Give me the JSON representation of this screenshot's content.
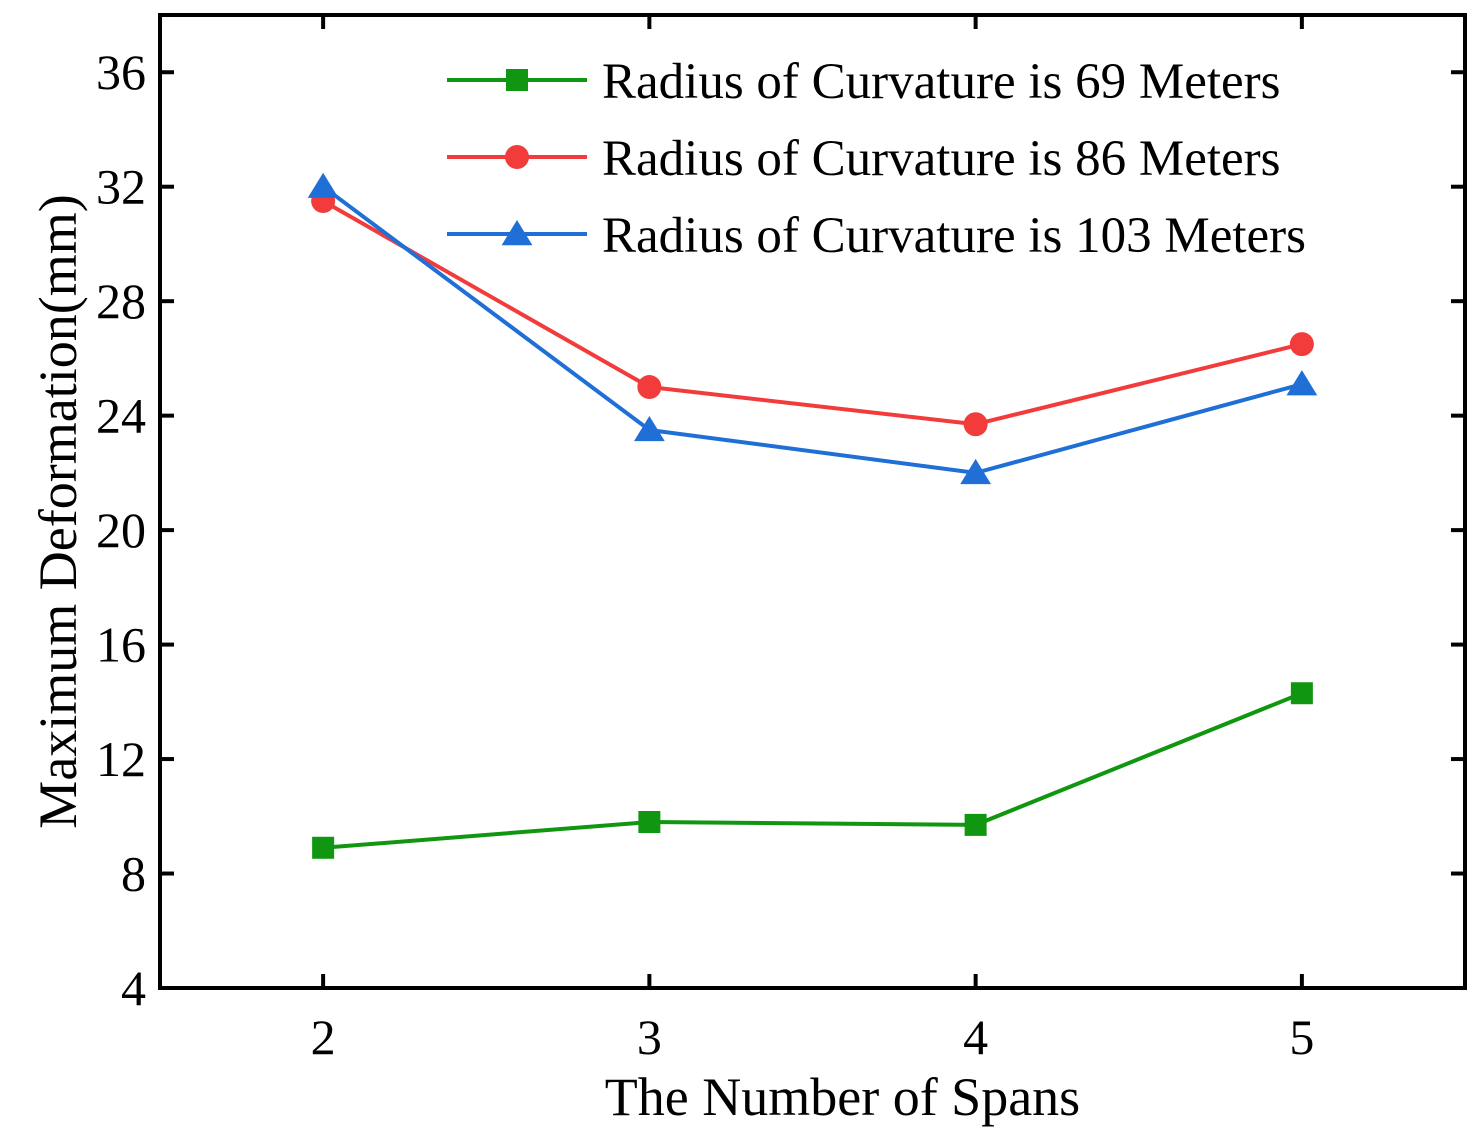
{
  "chart_data": {
    "type": "line",
    "title": "",
    "xlabel": "The Number of Spans",
    "ylabel": "Maximum Deformation(mm)",
    "x": [
      2,
      3,
      4,
      5
    ],
    "x_tick_labels": [
      "2",
      "3",
      "4",
      "5"
    ],
    "xlim": [
      1.5,
      5.5
    ],
    "ylim": [
      4,
      38
    ],
    "y_ticks": [
      4,
      8,
      12,
      16,
      20,
      24,
      28,
      32,
      36
    ],
    "y_tick_labels": [
      "4",
      "8",
      "12",
      "16",
      "20",
      "24",
      "28",
      "32",
      "36"
    ],
    "grid": false,
    "legend_position": "top-right",
    "series": [
      {
        "name": "Radius of Curvature is 69 Meters",
        "color": "#119611",
        "marker": "square",
        "values": [
          8.9,
          9.8,
          9.7,
          14.3
        ]
      },
      {
        "name": "Radius of Curvature is 86 Meters",
        "color": "#f23c3c",
        "marker": "circle",
        "values": [
          31.5,
          25.0,
          23.7,
          26.5
        ]
      },
      {
        "name": "Radius of Curvature is 103 Meters",
        "color": "#1f6fd6",
        "marker": "triangle",
        "values": [
          32.0,
          23.5,
          22.0,
          25.1
        ]
      }
    ]
  }
}
